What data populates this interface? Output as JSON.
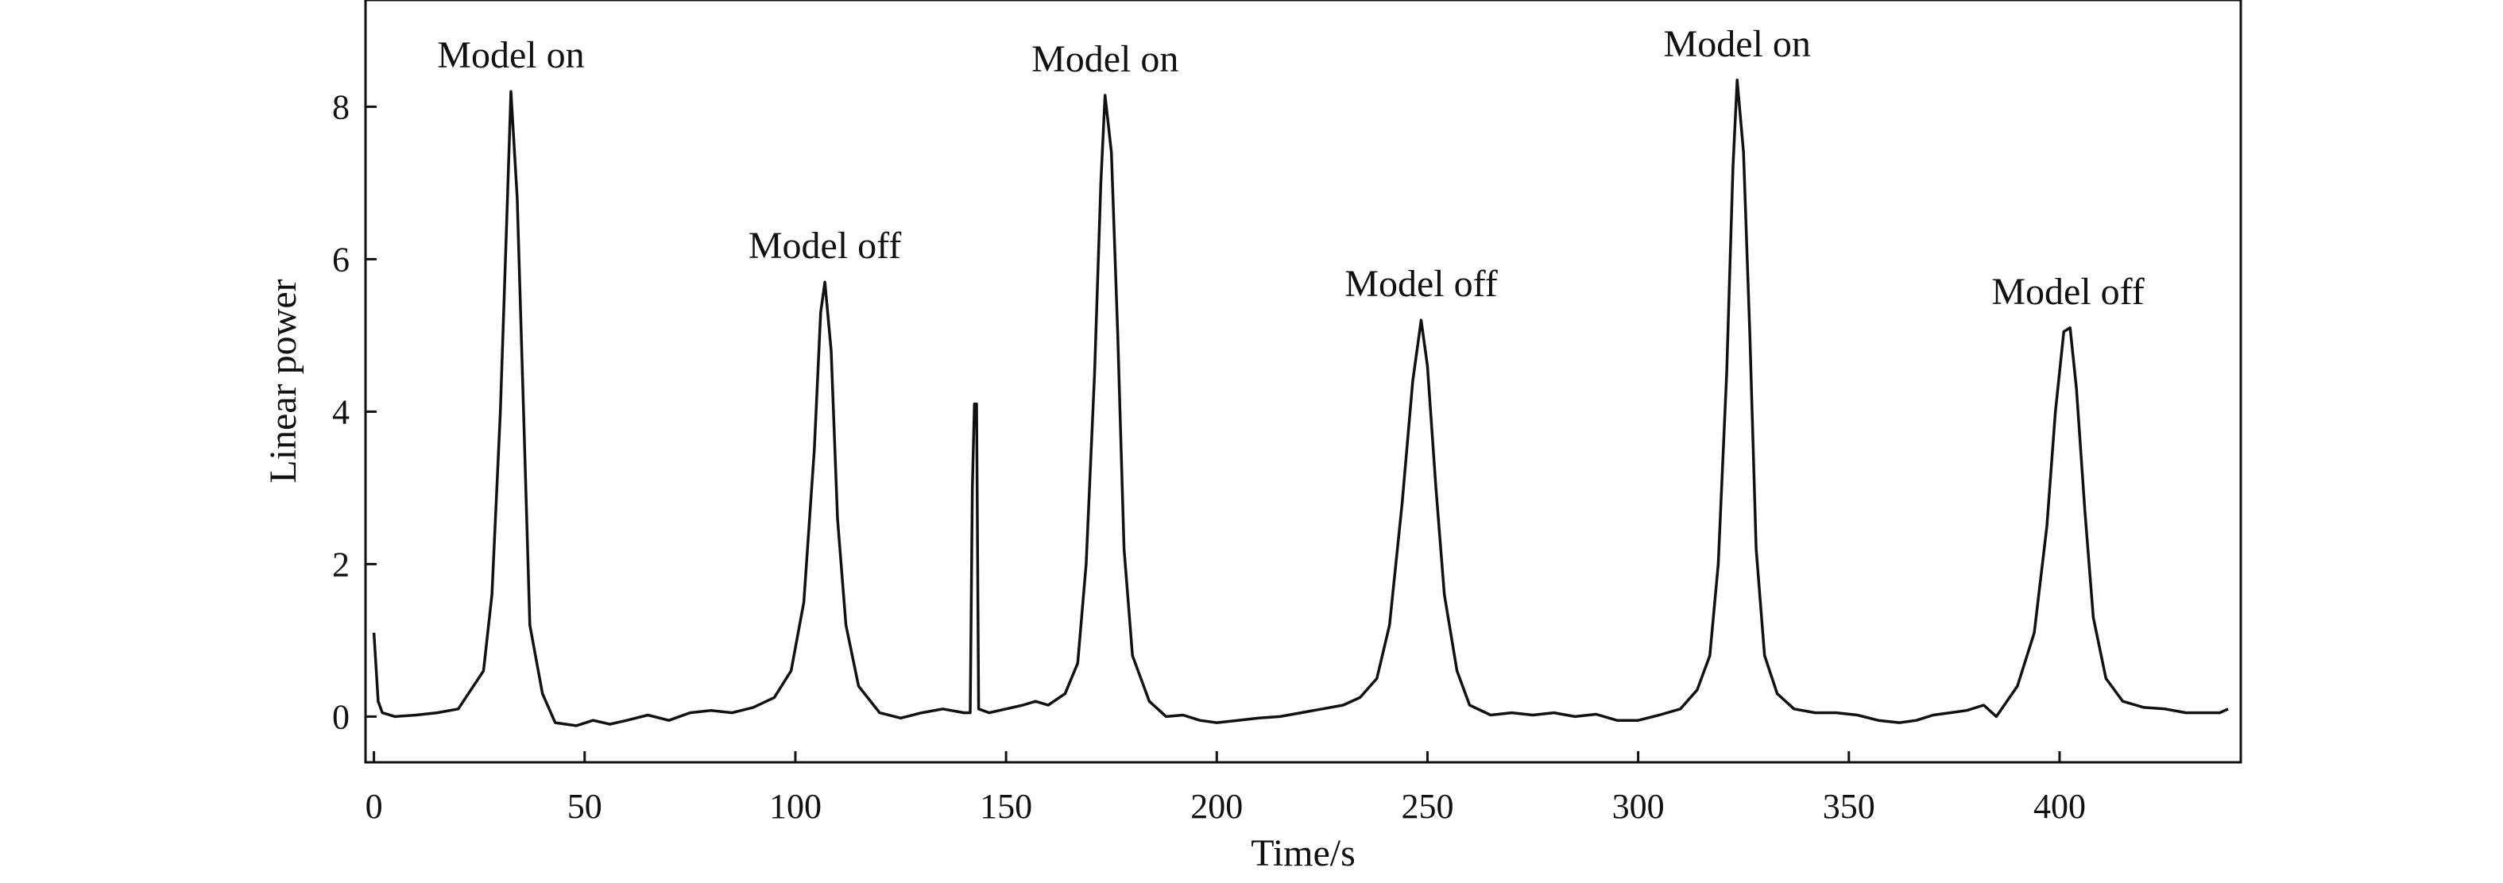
{
  "chart_data": {
    "type": "line",
    "xlabel": "Time/s",
    "ylabel": "Linear power",
    "xlim": [
      -2,
      443
    ],
    "ylim": [
      -0.6,
      9.4
    ],
    "xticks": [
      0,
      50,
      100,
      150,
      200,
      250,
      300,
      350,
      400
    ],
    "yticks": [
      0,
      2,
      4,
      6,
      8
    ],
    "grid": false,
    "legend": "none",
    "series": [
      {
        "color": "#111111",
        "points": [
          [
            0,
            1.1
          ],
          [
            1,
            0.2
          ],
          [
            2,
            0.05
          ],
          [
            5,
            0.0
          ],
          [
            10,
            0.02
          ],
          [
            15,
            0.05
          ],
          [
            20,
            0.1
          ],
          [
            23,
            0.35
          ],
          [
            26,
            0.6
          ],
          [
            28,
            1.6
          ],
          [
            30,
            4.0
          ],
          [
            31.5,
            6.5
          ],
          [
            32.5,
            8.2
          ],
          [
            34,
            6.8
          ],
          [
            35.5,
            4.0
          ],
          [
            37,
            1.2
          ],
          [
            40,
            0.3
          ],
          [
            43,
            -0.08
          ],
          [
            48,
            -0.12
          ],
          [
            52,
            -0.05
          ],
          [
            56,
            -0.1
          ],
          [
            60,
            -0.05
          ],
          [
            65,
            0.02
          ],
          [
            70,
            -0.05
          ],
          [
            75,
            0.05
          ],
          [
            80,
            0.08
          ],
          [
            85,
            0.05
          ],
          [
            90,
            0.12
          ],
          [
            95,
            0.25
          ],
          [
            99,
            0.6
          ],
          [
            102,
            1.5
          ],
          [
            104.5,
            3.5
          ],
          [
            106,
            5.3
          ],
          [
            107,
            5.7
          ],
          [
            108.5,
            4.8
          ],
          [
            110,
            2.6
          ],
          [
            112,
            1.2
          ],
          [
            115,
            0.4
          ],
          [
            120,
            0.05
          ],
          [
            125,
            -0.02
          ],
          [
            130,
            0.05
          ],
          [
            135,
            0.1
          ],
          [
            140,
            0.05
          ],
          [
            141.5,
            0.05
          ],
          [
            142,
            3.0
          ],
          [
            142.5,
            4.1
          ],
          [
            143,
            4.1
          ],
          [
            143.5,
            0.1
          ],
          [
            146,
            0.05
          ],
          [
            150,
            0.1
          ],
          [
            154,
            0.15
          ],
          [
            157,
            0.2
          ],
          [
            160,
            0.15
          ],
          [
            164,
            0.3
          ],
          [
            167,
            0.7
          ],
          [
            169,
            2.0
          ],
          [
            171,
            4.5
          ],
          [
            172.5,
            7.0
          ],
          [
            173.5,
            8.15
          ],
          [
            175,
            7.4
          ],
          [
            176.5,
            5.0
          ],
          [
            178,
            2.2
          ],
          [
            180,
            0.8
          ],
          [
            184,
            0.2
          ],
          [
            188,
            0.0
          ],
          [
            192,
            0.02
          ],
          [
            196,
            -0.05
          ],
          [
            200,
            -0.08
          ],
          [
            205,
            -0.05
          ],
          [
            210,
            -0.02
          ],
          [
            215,
            0.0
          ],
          [
            220,
            0.05
          ],
          [
            225,
            0.1
          ],
          [
            230,
            0.15
          ],
          [
            234,
            0.25
          ],
          [
            238,
            0.5
          ],
          [
            241,
            1.2
          ],
          [
            244,
            2.8
          ],
          [
            246.5,
            4.4
          ],
          [
            248.5,
            5.2
          ],
          [
            250,
            4.6
          ],
          [
            252,
            3.0
          ],
          [
            254,
            1.6
          ],
          [
            257,
            0.6
          ],
          [
            260,
            0.15
          ],
          [
            265,
            0.02
          ],
          [
            270,
            0.05
          ],
          [
            275,
            0.02
          ],
          [
            280,
            0.05
          ],
          [
            285,
            0.0
          ],
          [
            290,
            0.03
          ],
          [
            295,
            -0.05
          ],
          [
            300,
            -0.05
          ],
          [
            305,
            0.02
          ],
          [
            310,
            0.1
          ],
          [
            314,
            0.35
          ],
          [
            317,
            0.8
          ],
          [
            319,
            2.0
          ],
          [
            321,
            4.5
          ],
          [
            322.5,
            7.2
          ],
          [
            323.5,
            8.35
          ],
          [
            325,
            7.4
          ],
          [
            326.5,
            5.0
          ],
          [
            328,
            2.2
          ],
          [
            330,
            0.8
          ],
          [
            333,
            0.3
          ],
          [
            337,
            0.1
          ],
          [
            342,
            0.05
          ],
          [
            347,
            0.05
          ],
          [
            352,
            0.02
          ],
          [
            357,
            -0.05
          ],
          [
            362,
            -0.08
          ],
          [
            366,
            -0.05
          ],
          [
            370,
            0.02
          ],
          [
            374,
            0.05
          ],
          [
            378,
            0.08
          ],
          [
            382,
            0.15
          ],
          [
            385,
            0.0
          ],
          [
            390,
            0.4
          ],
          [
            394,
            1.1
          ],
          [
            397,
            2.5
          ],
          [
            399,
            4.0
          ],
          [
            401,
            5.05
          ],
          [
            402.5,
            5.1
          ],
          [
            404,
            4.3
          ],
          [
            406,
            2.7
          ],
          [
            408,
            1.3
          ],
          [
            411,
            0.5
          ],
          [
            415,
            0.2
          ],
          [
            420,
            0.12
          ],
          [
            425,
            0.1
          ],
          [
            430,
            0.05
          ],
          [
            435,
            0.05
          ],
          [
            438,
            0.05
          ],
          [
            440,
            0.1
          ]
        ]
      }
    ],
    "annotations": [
      {
        "text": "Model on",
        "x": 32.5,
        "y": 8.2
      },
      {
        "text": "Model off",
        "x": 107,
        "y": 5.7
      },
      {
        "text": "Model on",
        "x": 173.5,
        "y": 8.15
      },
      {
        "text": "Model off",
        "x": 248.5,
        "y": 5.2
      },
      {
        "text": "Model on",
        "x": 323.5,
        "y": 8.35
      },
      {
        "text": "Model off",
        "x": 402,
        "y": 5.1
      }
    ]
  }
}
